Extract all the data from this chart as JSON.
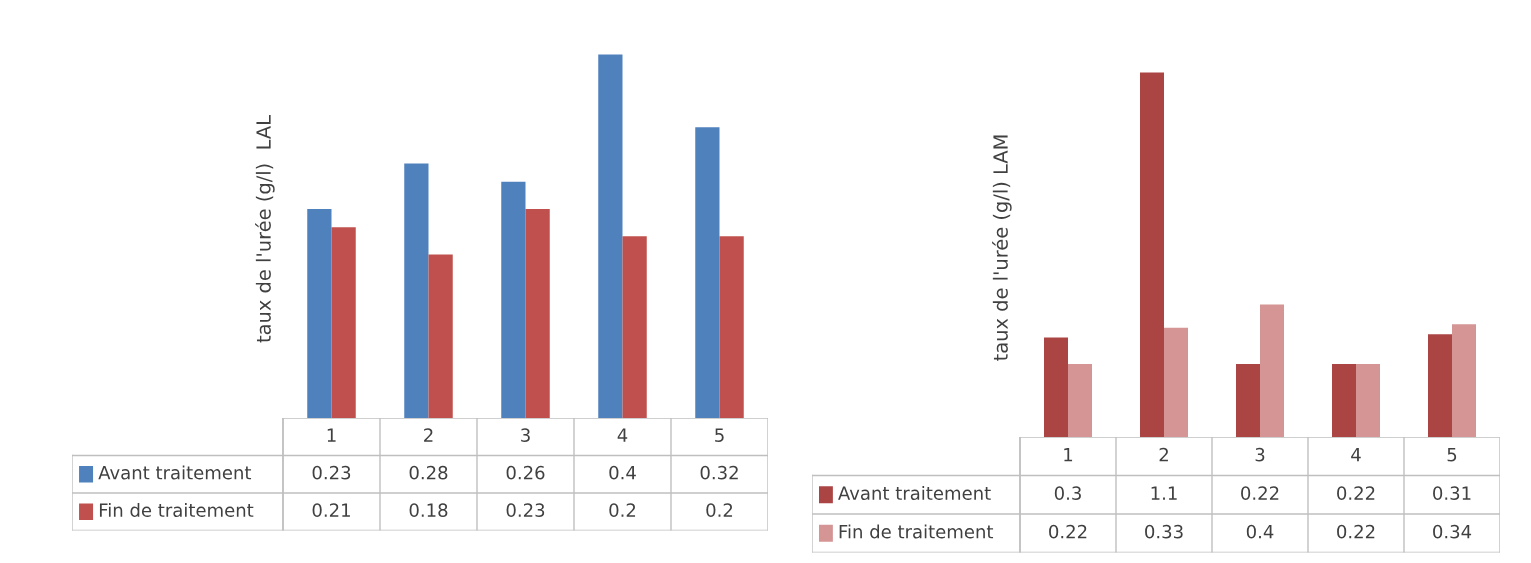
{
  "chart_data": [
    {
      "type": "bar",
      "ylabel": "taux de l'urée (g/l)  LAL",
      "categories": [
        "1",
        "2",
        "3",
        "4",
        "5"
      ],
      "data_labels": true,
      "legend": "bottom left",
      "series": [
        {
          "name": "Avant traitement",
          "color": "#4f81bd",
          "values": [
            0.23,
            0.28,
            0.26,
            0.4,
            0.32
          ]
        },
        {
          "name": "Fin de traitement",
          "color": "#c0504d",
          "values": [
            0.21,
            0.18,
            0.23,
            0.2,
            0.2
          ]
        }
      ]
    },
    {
      "type": "bar",
      "ylabel": "taux de l'urée (g/l) LAM",
      "categories": [
        "1",
        "2",
        "3",
        "4",
        "5"
      ],
      "data_labels": true,
      "legend": "bottom left",
      "series": [
        {
          "name": "Avant traitement",
          "color": "#ab4544",
          "values": [
            0.3,
            1.1,
            0.22,
            0.22,
            0.31
          ]
        },
        {
          "name": "Fin de traitement",
          "color": "#d59594",
          "values": [
            0.22,
            0.33,
            0.4,
            0.22,
            0.34
          ]
        }
      ]
    }
  ]
}
